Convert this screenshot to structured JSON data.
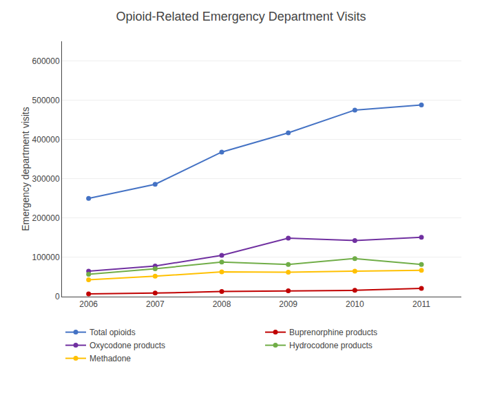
{
  "chart_data": {
    "type": "line",
    "title": "Opioid-Related Emergency Department Visits",
    "ylabel": "Emergency department visits",
    "x": [
      2006,
      2007,
      2008,
      2009,
      2010,
      2011
    ],
    "series": [
      {
        "name": "Total opioids",
        "color": "#4472C4",
        "values": [
          250000,
          286000,
          368000,
          417000,
          475000,
          488000
        ]
      },
      {
        "name": "Buprenorphine products",
        "color": "#C00000",
        "values": [
          7000,
          9000,
          13000,
          15000,
          16000,
          21000
        ]
      },
      {
        "name": "Oxycodone products",
        "color": "#7030A0",
        "values": [
          65000,
          78000,
          105000,
          149000,
          143000,
          151000
        ]
      },
      {
        "name": "Hydrocodone products",
        "color": "#70AD47",
        "values": [
          57000,
          71000,
          88000,
          82000,
          97000,
          82000
        ]
      },
      {
        "name": "Methadone",
        "color": "#FFC000",
        "values": [
          43000,
          52000,
          63000,
          62000,
          65000,
          67000
        ]
      }
    ],
    "xlim": [
      2005.6,
      2011.6
    ],
    "xticks": [
      2006,
      2007,
      2008,
      2009,
      2010,
      2011
    ],
    "ylim": [
      0,
      650000
    ],
    "yticks": [
      0,
      100000,
      200000,
      300000,
      400000,
      500000,
      600000
    ],
    "grid": true,
    "legend": "bottom",
    "marker": "circle"
  }
}
